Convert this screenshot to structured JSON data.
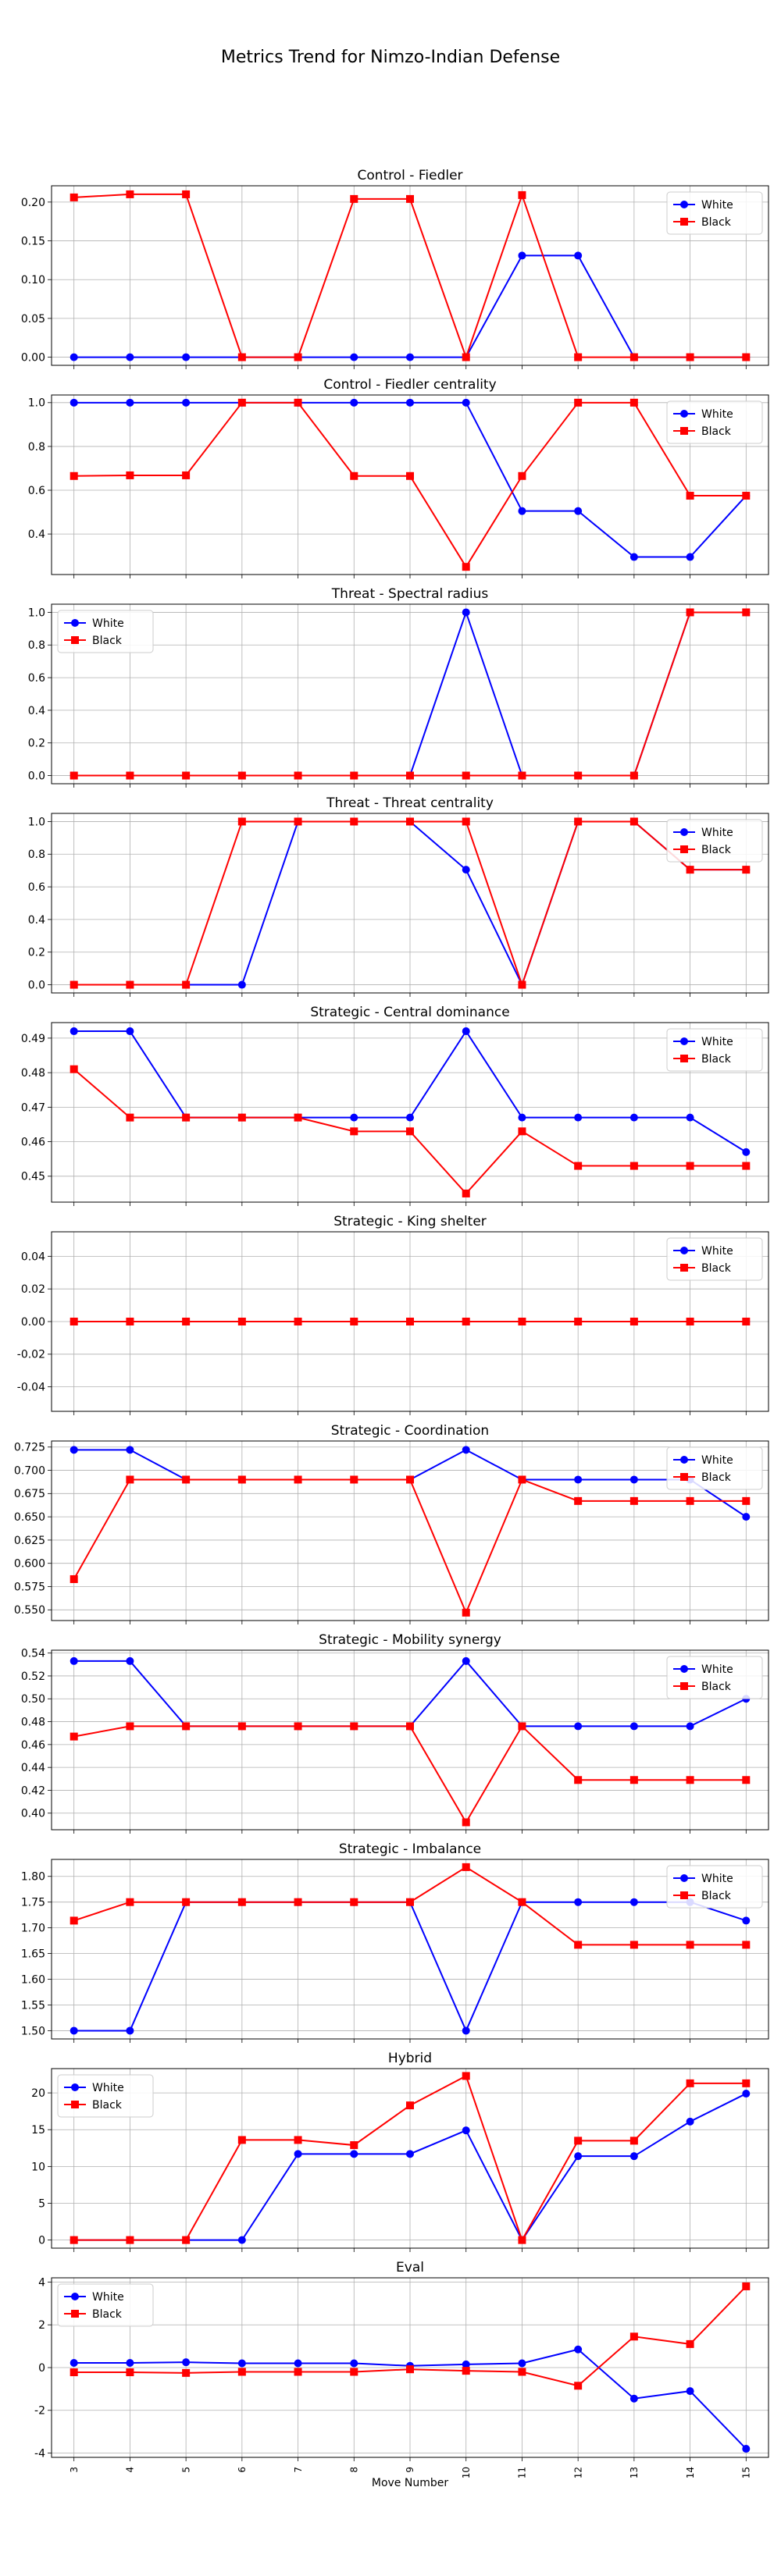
{
  "figure": {
    "title": "Metrics Trend for Nimzo-Indian Defense",
    "xlabel": "Move Number",
    "colors": {
      "White": "#0000ff",
      "Black": "#ff0000"
    },
    "markers": {
      "White": "circle",
      "Black": "square"
    }
  },
  "chart_data": [
    {
      "type": "line",
      "title": "Control - Fiedler",
      "x": [
        3,
        4,
        5,
        6,
        7,
        8,
        9,
        10,
        11,
        12,
        13,
        14,
        15
      ],
      "ylim": [
        -0.0105,
        0.221
      ],
      "yticks": [
        0.0,
        0.05,
        0.1,
        0.15,
        0.2
      ],
      "ytick_decimals": 2,
      "grid": true,
      "legend": "top-right",
      "series": [
        {
          "name": "White",
          "values": [
            0,
            0,
            0,
            0,
            0,
            0,
            0,
            0,
            0.131,
            0.131,
            0,
            0,
            0
          ]
        },
        {
          "name": "Black",
          "values": [
            0.206,
            0.21,
            0.21,
            0,
            0,
            0.204,
            0.204,
            0,
            0.209,
            0,
            0,
            0,
            0
          ]
        }
      ]
    },
    {
      "type": "line",
      "title": "Control - Fiedler centrality",
      "x": [
        3,
        4,
        5,
        6,
        7,
        8,
        9,
        10,
        11,
        12,
        13,
        14,
        15
      ],
      "ylim": [
        0.215,
        1.035
      ],
      "yticks": [
        0.4,
        0.6,
        0.8,
        1.0
      ],
      "ytick_decimals": 1,
      "grid": true,
      "legend": "top-right",
      "series": [
        {
          "name": "White",
          "values": [
            1.0,
            1.0,
            1.0,
            1.0,
            1.0,
            1.0,
            1.0,
            1.0,
            0.505,
            0.505,
            0.295,
            0.295,
            0.575
          ]
        },
        {
          "name": "Black",
          "values": [
            0.665,
            0.668,
            0.668,
            1.0,
            1.0,
            0.665,
            0.665,
            0.25,
            0.665,
            1.0,
            1.0,
            0.575,
            0.575
          ]
        }
      ]
    },
    {
      "type": "line",
      "title": "Threat - Spectral radius",
      "x": [
        3,
        4,
        5,
        6,
        7,
        8,
        9,
        10,
        11,
        12,
        13,
        14,
        15
      ],
      "ylim": [
        -0.05,
        1.05
      ],
      "yticks": [
        0.0,
        0.2,
        0.4,
        0.6,
        0.8,
        1.0
      ],
      "ytick_decimals": 1,
      "grid": true,
      "legend": "top-left",
      "series": [
        {
          "name": "White",
          "values": [
            0,
            0,
            0,
            0,
            0,
            0,
            0,
            1.0,
            0,
            0,
            0,
            1.0,
            1.0
          ]
        },
        {
          "name": "Black",
          "values": [
            0,
            0,
            0,
            0,
            0,
            0,
            0,
            0,
            0,
            0,
            0,
            1.0,
            1.0
          ]
        }
      ]
    },
    {
      "type": "line",
      "title": "Threat - Threat centrality",
      "x": [
        3,
        4,
        5,
        6,
        7,
        8,
        9,
        10,
        11,
        12,
        13,
        14,
        15
      ],
      "ylim": [
        -0.05,
        1.05
      ],
      "yticks": [
        0.0,
        0.2,
        0.4,
        0.6,
        0.8,
        1.0
      ],
      "ytick_decimals": 1,
      "grid": true,
      "legend": "top-right",
      "series": [
        {
          "name": "White",
          "values": [
            0,
            0,
            0,
            0,
            1.0,
            1.0,
            1.0,
            0.705,
            0,
            1.0,
            1.0,
            0.705,
            0.705
          ]
        },
        {
          "name": "Black",
          "values": [
            0,
            0,
            0,
            1.0,
            1.0,
            1.0,
            1.0,
            1.0,
            0,
            1.0,
            1.0,
            0.705,
            0.705
          ]
        }
      ]
    },
    {
      "type": "line",
      "title": "Strategic - Central dominance",
      "x": [
        3,
        4,
        5,
        6,
        7,
        8,
        9,
        10,
        11,
        12,
        13,
        14,
        15
      ],
      "ylim": [
        0.4425,
        0.4945
      ],
      "yticks": [
        0.45,
        0.46,
        0.47,
        0.48,
        0.49
      ],
      "ytick_decimals": 2,
      "grid": true,
      "legend": "top-right",
      "series": [
        {
          "name": "White",
          "values": [
            0.492,
            0.492,
            0.467,
            0.467,
            0.467,
            0.467,
            0.467,
            0.492,
            0.467,
            0.467,
            0.467,
            0.467,
            0.457
          ]
        },
        {
          "name": "Black",
          "values": [
            0.481,
            0.467,
            0.467,
            0.467,
            0.467,
            0.463,
            0.463,
            0.445,
            0.463,
            0.453,
            0.453,
            0.453,
            0.453
          ]
        }
      ]
    },
    {
      "type": "line",
      "title": "Strategic - King shelter",
      "x": [
        3,
        4,
        5,
        6,
        7,
        8,
        9,
        10,
        11,
        12,
        13,
        14,
        15
      ],
      "ylim": [
        -0.055,
        0.055
      ],
      "yticks": [
        -0.04,
        -0.02,
        0.0,
        0.02,
        0.04
      ],
      "ytick_decimals": 2,
      "grid": true,
      "legend": "top-right",
      "series": [
        {
          "name": "White",
          "values": [
            0,
            0,
            0,
            0,
            0,
            0,
            0,
            0,
            0,
            0,
            0,
            0,
            0
          ]
        },
        {
          "name": "Black",
          "values": [
            0,
            0,
            0,
            0,
            0,
            0,
            0,
            0,
            0,
            0,
            0,
            0,
            0
          ]
        }
      ]
    },
    {
      "type": "line",
      "title": "Strategic - Coordination",
      "x": [
        3,
        4,
        5,
        6,
        7,
        8,
        9,
        10,
        11,
        12,
        13,
        14,
        15
      ],
      "ylim": [
        0.5385,
        0.7315
      ],
      "yticks": [
        0.55,
        0.575,
        0.6,
        0.625,
        0.65,
        0.675,
        0.7,
        0.725
      ],
      "ytick_decimals": 3,
      "grid": true,
      "legend": "top-right",
      "series": [
        {
          "name": "White",
          "values": [
            0.722,
            0.722,
            0.69,
            0.69,
            0.69,
            0.69,
            0.69,
            0.722,
            0.69,
            0.69,
            0.69,
            0.69,
            0.65
          ]
        },
        {
          "name": "Black",
          "values": [
            0.583,
            0.69,
            0.69,
            0.69,
            0.69,
            0.69,
            0.69,
            0.547,
            0.69,
            0.667,
            0.667,
            0.667,
            0.667
          ]
        }
      ]
    },
    {
      "type": "line",
      "title": "Strategic - Mobility synergy",
      "x": [
        3,
        4,
        5,
        6,
        7,
        8,
        9,
        10,
        11,
        12,
        13,
        14,
        15
      ],
      "ylim": [
        0.3855,
        0.5425
      ],
      "yticks": [
        0.4,
        0.42,
        0.44,
        0.46,
        0.48,
        0.5,
        0.52,
        0.54
      ],
      "ytick_decimals": 2,
      "grid": true,
      "legend": "top-right",
      "series": [
        {
          "name": "White",
          "values": [
            0.533,
            0.533,
            0.476,
            0.476,
            0.476,
            0.476,
            0.476,
            0.533,
            0.476,
            0.476,
            0.476,
            0.476,
            0.5
          ]
        },
        {
          "name": "Black",
          "values": [
            0.467,
            0.476,
            0.476,
            0.476,
            0.476,
            0.476,
            0.476,
            0.392,
            0.476,
            0.429,
            0.429,
            0.429,
            0.429
          ]
        }
      ]
    },
    {
      "type": "line",
      "title": "Strategic - Imbalance",
      "x": [
        3,
        4,
        5,
        6,
        7,
        8,
        9,
        10,
        11,
        12,
        13,
        14,
        15
      ],
      "ylim": [
        1.484,
        1.833
      ],
      "yticks": [
        1.5,
        1.55,
        1.6,
        1.65,
        1.7,
        1.75,
        1.8
      ],
      "ytick_decimals": 2,
      "grid": true,
      "legend": "top-right",
      "series": [
        {
          "name": "White",
          "values": [
            1.5,
            1.5,
            1.75,
            1.75,
            1.75,
            1.75,
            1.75,
            1.5,
            1.75,
            1.75,
            1.75,
            1.75,
            1.714
          ]
        },
        {
          "name": "Black",
          "values": [
            1.714,
            1.75,
            1.75,
            1.75,
            1.75,
            1.75,
            1.75,
            1.818,
            1.75,
            1.667,
            1.667,
            1.667,
            1.667
          ]
        }
      ]
    },
    {
      "type": "line",
      "title": "Hybrid",
      "x": [
        3,
        4,
        5,
        6,
        7,
        8,
        9,
        10,
        11,
        12,
        13,
        14,
        15
      ],
      "ylim": [
        -1.1,
        23.3
      ],
      "yticks": [
        0,
        5,
        10,
        15,
        20
      ],
      "ytick_decimals": 0,
      "grid": true,
      "legend": "top-left",
      "series": [
        {
          "name": "White",
          "values": [
            0,
            0,
            0,
            0,
            11.7,
            11.7,
            11.7,
            14.9,
            0,
            11.4,
            11.4,
            16.1,
            19.9
          ]
        },
        {
          "name": "Black",
          "values": [
            0,
            0,
            0,
            13.6,
            13.6,
            12.9,
            18.3,
            22.3,
            0,
            13.5,
            13.5,
            21.3,
            21.3
          ]
        }
      ]
    },
    {
      "type": "line",
      "title": "Eval",
      "x": [
        3,
        4,
        5,
        6,
        7,
        8,
        9,
        10,
        11,
        12,
        13,
        14,
        15
      ],
      "ylim": [
        -4.2,
        4.2
      ],
      "yticks": [
        -4,
        -2,
        0,
        2,
        4
      ],
      "ytick_decimals": 0,
      "grid": true,
      "legend": "top-left",
      "series": [
        {
          "name": "White",
          "values": [
            0.22,
            0.22,
            0.25,
            0.2,
            0.2,
            0.2,
            0.08,
            0.15,
            0.2,
            0.85,
            -1.45,
            -1.1,
            -3.8
          ]
        },
        {
          "name": "Black",
          "values": [
            -0.22,
            -0.22,
            -0.25,
            -0.2,
            -0.2,
            -0.2,
            -0.08,
            -0.15,
            -0.2,
            -0.85,
            1.45,
            1.1,
            3.8
          ]
        }
      ]
    }
  ]
}
